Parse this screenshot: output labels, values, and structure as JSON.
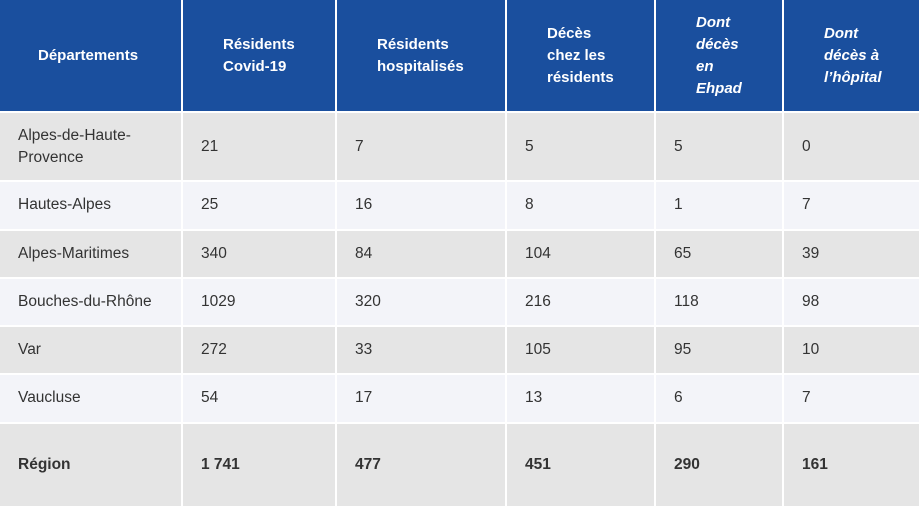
{
  "headers": [
    "Départements",
    "Résidents Covid-19",
    "Résidents hospitalisés",
    "Décès chez les résidents",
    "Dont décès en Ehpad",
    "Dont décès à l’hôpital"
  ],
  "rows": [
    [
      "Alpes-de-Haute-Provence",
      "21",
      "7",
      "5",
      "5",
      "0"
    ],
    [
      "Hautes-Alpes",
      "25",
      "16",
      "8",
      "1",
      "7"
    ],
    [
      "Alpes-Maritimes",
      "340",
      "84",
      "104",
      "65",
      "39"
    ],
    [
      "Bouches-du-Rhône",
      "1029",
      "320",
      "216",
      "118",
      "98"
    ],
    [
      "Var",
      "272",
      "33",
      "105",
      "95",
      "10"
    ],
    [
      "Vaucluse",
      "54",
      "17",
      "13",
      "6",
      "7"
    ]
  ],
  "total": [
    "Région",
    "1 741",
    "477",
    "451",
    "290",
    "161"
  ],
  "colors": {
    "header_bg": "#1a4f9e",
    "row_odd": "#e5e5e5",
    "row_even": "#f3f4f9"
  }
}
